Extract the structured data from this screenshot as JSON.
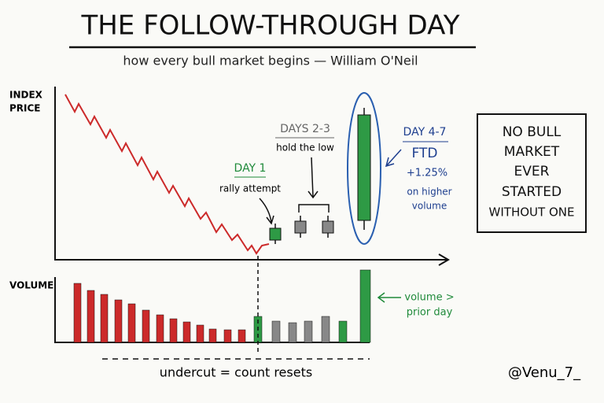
{
  "header": {
    "title": "THE FOLLOW-THROUGH DAY",
    "subtitle": "how every bull market begins — William O'Neil"
  },
  "price_axis": {
    "label": [
      "INDEX",
      "PRICE"
    ]
  },
  "day1": {
    "label": "DAY 1",
    "note": "rally attempt"
  },
  "days23": {
    "label": "DAYS 2-3",
    "note": "hold the low"
  },
  "day47": {
    "label": "DAY 4-7",
    "ftd": "FTD",
    "gain": "+1.25%",
    "note": [
      "on higher",
      "volume"
    ]
  },
  "callout": {
    "lines": [
      "NO BULL",
      "MARKET",
      "EVER",
      "STARTED",
      "WITHOUT ONE"
    ]
  },
  "volume_axis": {
    "label": "VOLUME",
    "note": [
      "volume >",
      "prior day"
    ]
  },
  "undercut": "undercut = count resets",
  "credit": "@Venu_7_"
}
